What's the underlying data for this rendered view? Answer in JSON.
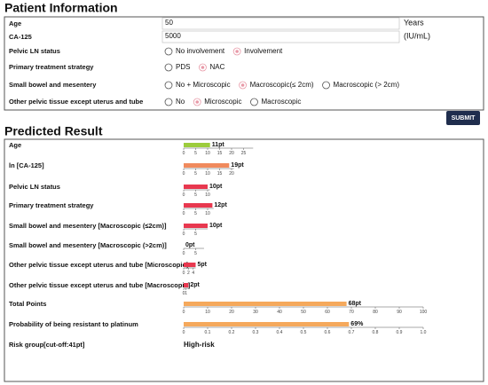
{
  "patient_info": {
    "title": "Patient Information",
    "rows": [
      {
        "label": "Age",
        "value": 50,
        "unit": "Years"
      },
      {
        "label": "CA-125",
        "value": 5000,
        "unit": "(IU/mL)"
      },
      {
        "label": "Pelvic LN status",
        "options": [
          "No involvement",
          "Involvement"
        ],
        "selected": 1
      },
      {
        "label": "Primary treatment strategy",
        "options": [
          "PDS",
          "NAC"
        ],
        "selected": 1
      },
      {
        "label": "Small bowel and mesentery",
        "options": [
          "No + Microscopic",
          "Macroscopic(≤ 2cm)",
          "Macroscopic (> 2cm)"
        ],
        "selected": 1
      },
      {
        "label": "Other pelvic tissue except uterus and tube",
        "options": [
          "No",
          "Microscopic",
          "Macroscopic"
        ],
        "selected": 1
      }
    ]
  },
  "submit": "SUBMIT",
  "predicted_result": {
    "title": "Predicted Result",
    "rows": [
      {
        "label": "Age",
        "value": 11,
        "value_label": "11pt",
        "xlim": [
          0,
          29
        ],
        "xticks": [
          0,
          5,
          10,
          15,
          20,
          25
        ],
        "color": "#9ccc3c"
      },
      {
        "label": "ln [CA-125]",
        "value": 19,
        "value_label": "19pt",
        "xlim": [
          0,
          21
        ],
        "xticks": [
          0,
          5,
          10,
          15,
          20
        ],
        "color": "#f08a5d"
      },
      {
        "label": "Pelvic LN status",
        "value": 10,
        "value_label": "10pt",
        "xlim": [
          0,
          11
        ],
        "xticks": [
          0,
          5,
          10
        ],
        "color": "#e8384f"
      },
      {
        "label": "Primary treatment strategy",
        "value": 12,
        "value_label": "12pt",
        "xlim": [
          0,
          12.5
        ],
        "xticks": [
          0,
          5,
          10
        ],
        "color": "#e8384f"
      },
      {
        "label": "Small bowel and mesentery [Macroscopic (≤2cm)]",
        "value": 10,
        "value_label": "10pt",
        "xlim": [
          0,
          10
        ],
        "xticks": [
          0,
          5
        ],
        "color": "#e8384f"
      },
      {
        "label": "Small bowel and mesentery [Macroscopic (>2cm)]",
        "value": 0,
        "value_label": "0pt",
        "xlim": [
          0,
          8.5
        ],
        "xticks": [
          0,
          5
        ],
        "color": "#e8384f"
      },
      {
        "label": "Other pelvic tissue except uterus and tube [Microscopic]",
        "value": 5,
        "value_label": "5pt",
        "xlim": [
          0,
          5
        ],
        "xticks": [
          0,
          2,
          4
        ],
        "color": "#e8384f"
      },
      {
        "label": "Other pelvic tissue except uterus and tube [Macroscopic]",
        "value": 2,
        "value_label": "2pt",
        "xlim": [
          0,
          2
        ],
        "xticks": [
          0,
          1
        ],
        "color": "#e8384f"
      },
      {
        "label": "Total Points",
        "value": 68,
        "value_label": "68pt",
        "xlim": [
          0,
          100
        ],
        "xticks": [
          0,
          10,
          20,
          30,
          40,
          50,
          60,
          70,
          80,
          90,
          100
        ],
        "color": "#f5a95c"
      },
      {
        "label": "Probability of being resistant to platinum",
        "value": 0.69,
        "value_label": "69%",
        "xlim": [
          0,
          1
        ],
        "xticks": [
          0,
          0.1,
          0.2,
          0.3,
          0.4,
          0.5,
          0.6,
          0.7,
          0.8,
          0.9,
          {
            "value": 1,
            "label": "1.0"
          }
        ],
        "color": "#f5a95c"
      }
    ],
    "risk_group": {
      "label": "Risk group[cut-off:41pt]",
      "value": "High-risk"
    }
  }
}
